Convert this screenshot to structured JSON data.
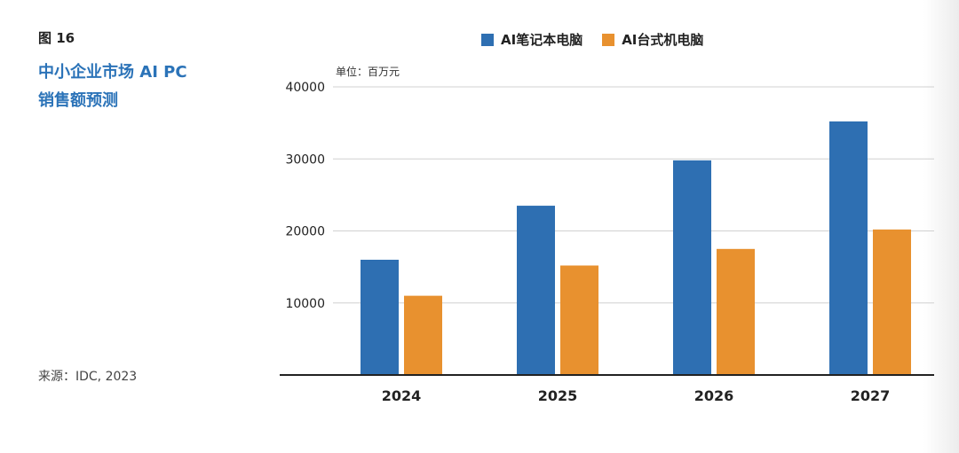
{
  "figure_label": "图 16",
  "title_line1": "中小企业市场 AI PC",
  "title_line2": "销售额预测",
  "source": "来源：IDC, 2023",
  "colors": {
    "notebook": "#2e6fb2",
    "desktop": "#e8912f",
    "title": "#2b73b8"
  },
  "chart_data": {
    "type": "bar",
    "unit_label": "单位：百万元",
    "categories": [
      "2024",
      "2025",
      "2026",
      "2027"
    ],
    "series": [
      {
        "name": "AI笔记本电脑",
        "values": [
          16000,
          23500,
          29800,
          35200
        ]
      },
      {
        "name": "AI台式机电脑",
        "values": [
          11000,
          15200,
          17500,
          20200
        ]
      }
    ],
    "ylim": [
      0,
      40000
    ],
    "yticks": [
      "10000",
      "20000",
      "30000",
      "40000"
    ],
    "grid": true,
    "legend": "top"
  }
}
